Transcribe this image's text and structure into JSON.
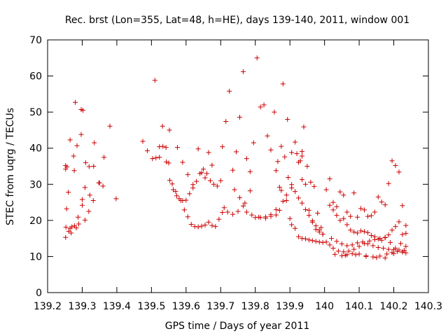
{
  "chart_data": {
    "type": "scatter",
    "title": "Rec. brst (Lon=355, Lat=48, h=HE), days 139-140, 2011, window 001",
    "xlabel": "GPS time / Days of year 2011",
    "ylabel": "STEC from uqrg / TECUs",
    "xlim": [
      139.2,
      140.3
    ],
    "ylim": [
      0,
      70
    ],
    "xticks": [
      139.2,
      139.3,
      139.4,
      139.5,
      139.6,
      139.7,
      139.8,
      139.9,
      140,
      140.1,
      140.2,
      140.3
    ],
    "xtick_labels": [
      "139.2",
      "139.3",
      "139.4",
      "139.5",
      "139.6",
      "139.7",
      "139.8",
      "139.9",
      "140",
      "140.1",
      "140.2",
      "140.3"
    ],
    "yticks": [
      0,
      10,
      20,
      30,
      40,
      50,
      60,
      70
    ],
    "ytick_labels": [
      "0",
      "10",
      "20",
      "30",
      "40",
      "50",
      "60",
      "70"
    ],
    "grid": false,
    "marker": "plus",
    "color": "#cc0000",
    "series": [
      {
        "x": [
          139.252,
          139.253,
          139.255,
          139.261,
          139.265,
          139.27,
          139.278,
          139.283,
          139.29,
          139.3,
          139.308,
          139.319,
          139.332,
          139.252,
          139.256,
          139.265,
          139.275,
          139.285,
          139.297,
          139.308,
          139.32,
          139.335,
          139.35,
          139.363,
          139.38,
          139.398,
          139.252,
          139.26,
          139.277,
          139.288,
          139.297,
          139.302,
          139.31,
          139.322,
          139.333,
          139.348,
          139.36,
          139.268,
          139.28,
          139.3,
          139.475,
          139.488,
          139.503,
          139.513,
          139.523,
          139.532,
          139.542,
          139.552,
          139.51,
          139.523,
          139.533,
          139.543,
          139.553,
          139.563,
          139.573,
          139.585,
          139.595,
          139.605,
          139.615,
          139.625,
          139.635,
          139.645,
          139.655,
          139.665,
          139.675,
          139.685,
          139.695,
          139.705,
          139.55,
          139.56,
          139.57,
          139.58,
          139.59,
          139.6,
          139.61,
          139.62,
          139.63,
          139.64,
          139.65,
          139.66,
          139.67,
          139.68,
          139.69,
          139.7,
          139.575,
          139.59,
          139.605,
          139.62,
          139.635,
          139.645,
          139.655,
          139.665,
          139.675,
          139.705,
          139.715,
          139.725,
          139.735,
          139.745,
          139.755,
          139.765,
          139.775,
          139.785,
          139.795,
          139.805,
          139.815,
          139.825,
          139.835,
          139.845,
          139.855,
          139.865,
          139.875,
          139.885,
          139.895,
          139.905,
          139.915,
          139.925,
          139.935,
          139.945,
          139.955,
          139.965,
          139.975,
          139.985,
          139.995,
          139.71,
          139.72,
          139.735,
          139.75,
          139.765,
          139.775,
          139.79,
          139.81,
          139.83,
          139.845,
          139.86,
          139.87,
          139.88,
          139.89,
          139.9,
          139.74,
          139.755,
          139.77,
          139.785,
          139.8,
          139.815,
          139.83,
          139.845,
          139.86,
          139.875,
          139.89,
          139.905,
          139.92,
          139.935,
          139.86,
          139.87,
          139.88,
          139.893,
          139.905,
          139.915,
          139.925,
          139.935,
          139.945,
          139.955,
          139.965,
          139.975,
          139.985,
          139.995,
          139.905,
          139.915,
          139.925,
          139.935,
          139.945,
          139.955,
          139.965,
          139.975,
          139.985,
          139.995,
          139.93,
          139.935,
          139.94,
          139.95,
          139.96,
          139.97,
          139.98,
          139.99,
          140.005,
          140.015,
          140.025,
          140.035,
          140.045,
          140.055,
          140.065,
          140.075,
          140.085,
          140.095,
          140.105,
          140.115,
          140.125,
          140.135,
          140.145,
          140.155,
          140.165,
          140.175,
          140.185,
          140.195,
          140.205,
          140.215,
          140.225,
          140.235,
          140.015,
          140.025,
          140.035,
          140.045,
          140.055,
          140.065,
          140.075,
          140.085,
          140.095,
          140.105,
          140.115,
          140.125,
          140.135,
          140.145,
          140.155,
          140.165,
          140.175,
          140.185,
          140.195,
          140.205,
          140.215,
          140.225,
          140.235,
          140.005,
          140.015,
          140.025,
          140.04,
          140.055,
          140.07,
          140.085,
          140.1,
          140.115,
          140.13,
          140.145,
          140.16,
          140.175,
          140.19,
          140.205,
          140.22,
          140.235,
          140.02,
          140.035,
          140.05,
          140.065,
          140.08,
          140.095,
          140.11,
          140.125,
          140.14,
          140.155,
          140.17,
          140.185,
          140.2,
          140.215,
          140.23,
          140.05,
          140.065,
          140.08,
          140.1,
          140.12,
          140.14,
          140.16,
          140.18,
          140.195,
          140.21,
          140.225,
          140.235,
          140.03,
          140.06,
          140.09,
          140.12,
          140.15,
          140.175,
          140.2,
          140.225
        ],
        "y": [
          15.3,
          18.1,
          23.2,
          17.0,
          17.8,
          18.2,
          18.5,
          17.9,
          19.0,
          24.2,
          20.1,
          22.5,
          25.5,
          34.2,
          34.8,
          42.3,
          37.8,
          40.7,
          43.8,
          29.1,
          34.9,
          41.5,
          30.4,
          37.5,
          46.1,
          26.0,
          35.2,
          27.8,
          33.8,
          20.9,
          50.7,
          50.5,
          36.0,
          27.0,
          35.0,
          30.4,
          29.5,
          16.5,
          52.7,
          25.8,
          41.9,
          39.3,
          37.1,
          37.3,
          37.5,
          46.1,
          40.2,
          45.0,
          58.8,
          40.4,
          40.5,
          36.2,
          31.1,
          28.5,
          26.8,
          25.5,
          22.9,
          21.0,
          18.9,
          18.3,
          18.2,
          18.4,
          18.7,
          19.5,
          18.6,
          18.3,
          20.3,
          22.2,
          35.9,
          30.1,
          28.0,
          26.0,
          25.5,
          25.6,
          27.4,
          29.0,
          30.8,
          33.0,
          34.2,
          33.0,
          31.0,
          30.0,
          29.5,
          31.0,
          40.2,
          36.1,
          32.7,
          29.9,
          39.8,
          33.2,
          31.8,
          38.8,
          35.3,
          40.4,
          47.4,
          55.8,
          33.9,
          39.0,
          48.6,
          61.2,
          37.1,
          33.5,
          41.5,
          65.0,
          51.4,
          52.0,
          43.4,
          39.5,
          50.0,
          36.3,
          40.5,
          37.6,
          31.9,
          29.9,
          28.0,
          26.2,
          24.8,
          23.0,
          21.4,
          19.9,
          18.5,
          17.3,
          16.2,
          23.5,
          22.3,
          21.7,
          22.5,
          24.0,
          22.3,
          21.5,
          20.9,
          20.6,
          21.1,
          21.5,
          22.8,
          25.3,
          25.5,
          20.5,
          28.5,
          26.3,
          24.8,
          28.2,
          20.8,
          20.8,
          21.0,
          21.6,
          23.0,
          28.3,
          27.0,
          29.0,
          38.5,
          31.3,
          33.8,
          29.2,
          57.8,
          48.0,
          38.8,
          41.7,
          36.1,
          39.1,
          30.0,
          22.8,
          19.5,
          17.5,
          16.8,
          16.2,
          18.8,
          17.8,
          15.5,
          15.0,
          14.9,
          14.6,
          14.4,
          14.2,
          14.0,
          13.9,
          36.5,
          37.8,
          45.9,
          35.0,
          30.6,
          29.4,
          22.0,
          18.0,
          28.5,
          31.5,
          25.0,
          23.8,
          27.9,
          27.0,
          22.3,
          21.1,
          27.6,
          20.9,
          23.3,
          22.9,
          21.1,
          21.3,
          22.3,
          26.5,
          25.1,
          24.3,
          30.2,
          36.5,
          35.2,
          33.4,
          24.1,
          18.6,
          24.2,
          22.9,
          21.4,
          20.0,
          20.5,
          18.8,
          17.3,
          16.8,
          16.5,
          17.1,
          16.9,
          16.6,
          15.8,
          15.5,
          14.8,
          14.5,
          15.3,
          16.0,
          17.3,
          18.3,
          19.6,
          16.1,
          16.4,
          14.0,
          13.2,
          12.3,
          11.5,
          11.3,
          11.5,
          12.0,
          12.8,
          13.6,
          14.3,
          14.7,
          15.0,
          15.2,
          13.9,
          12.3,
          13.6,
          12.8,
          15.0,
          14.2,
          13.5,
          13.0,
          13.2,
          13.8,
          14.0,
          13.5,
          13.0,
          12.5,
          12.3,
          12.0,
          11.9,
          11.8,
          11.7,
          10.2,
          10.5,
          10.8,
          10.7,
          10.2,
          9.9,
          10.1,
          10.7,
          11.1,
          11.4,
          11.2,
          11.0,
          10.6,
          10.3,
          10.5,
          10.0,
          9.7,
          9.6,
          10.8,
          11.3
        ]
      }
    ]
  }
}
